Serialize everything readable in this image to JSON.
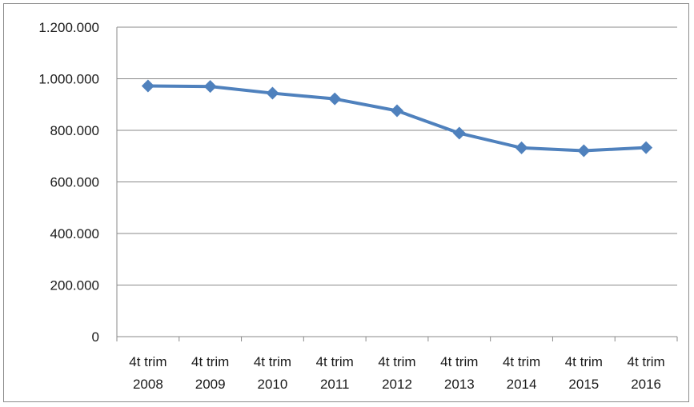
{
  "chart_data": {
    "type": "line",
    "title": "",
    "xlabel": "",
    "ylabel": "",
    "categories": [
      [
        "4t trim",
        "2008"
      ],
      [
        "4t trim",
        "2009"
      ],
      [
        "4t trim",
        "2010"
      ],
      [
        "4t trim",
        "2011"
      ],
      [
        "4t trim",
        "2012"
      ],
      [
        "4t trim",
        "2013"
      ],
      [
        "4t trim",
        "2014"
      ],
      [
        "4t trim",
        "2015"
      ],
      [
        "4t trim",
        "2016"
      ]
    ],
    "series": [
      {
        "values": [
          972000,
          970000,
          944000,
          922000,
          876000,
          789000,
          732000,
          721000,
          733000
        ],
        "color": "#4f81bd"
      }
    ],
    "ylim": [
      0,
      1200000
    ],
    "yticks": [
      {
        "value": 0,
        "label": "0"
      },
      {
        "value": 200000,
        "label": "200.000"
      },
      {
        "value": 400000,
        "label": "400.000"
      },
      {
        "value": 600000,
        "label": "600.000"
      },
      {
        "value": 800000,
        "label": "800.000"
      },
      {
        "value": 1000000,
        "label": "1.000.000"
      },
      {
        "value": 1200000,
        "label": "1.200.000"
      }
    ],
    "grid": true,
    "legend": "none"
  }
}
